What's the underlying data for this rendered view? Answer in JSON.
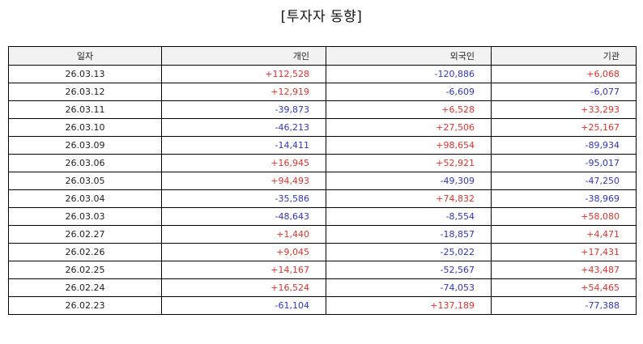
{
  "title": "[투자자 동향]",
  "colors": {
    "positive": "#e4312b",
    "negative": "#2f35c8",
    "header_bg": "#f2f2f2"
  },
  "table": {
    "headers": [
      "일자",
      "개인",
      "외국인",
      "기관"
    ],
    "rows": [
      [
        "26.03.13",
        "+112,528",
        "-120,886",
        "+6,068"
      ],
      [
        "26.03.12",
        "+12,919",
        "-6,609",
        "-6,077"
      ],
      [
        "26.03.11",
        "-39,873",
        "+6,528",
        "+33,293"
      ],
      [
        "26.03.10",
        "-46,213",
        "+27,506",
        "+25,167"
      ],
      [
        "26.03.09",
        "-14,411",
        "+98,654",
        "-89,934"
      ],
      [
        "26.03.06",
        "+16,945",
        "+52,921",
        "-95,017"
      ],
      [
        "26.03.05",
        "+94,493",
        "-49,309",
        "-47,250"
      ],
      [
        "26.03.04",
        "-35,586",
        "+74,832",
        "-38,969"
      ],
      [
        "26.03.03",
        "-48,643",
        "-8,554",
        "+58,080"
      ],
      [
        "26.02.27",
        "+1,440",
        "-18,857",
        "+4,471"
      ],
      [
        "26.02.26",
        "+9,045",
        "-25,022",
        "+17,431"
      ],
      [
        "26.02.25",
        "+14,167",
        "-52,567",
        "+43,487"
      ],
      [
        "26.02.24",
        "+16,524",
        "-74,053",
        "+54,465"
      ],
      [
        "26.02.23",
        "-61,104",
        "+137,189",
        "-77,388"
      ]
    ]
  }
}
